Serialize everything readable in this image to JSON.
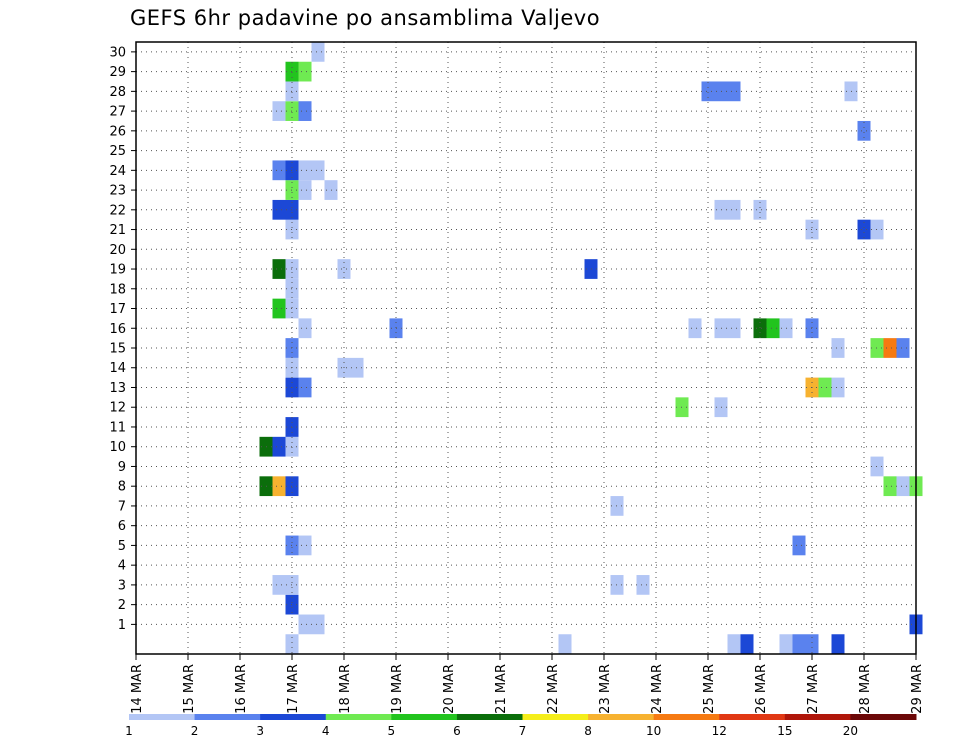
{
  "chart_data": {
    "type": "heatmap",
    "title": "GEFS 6hr padavine po ansamblima Valjevo",
    "xlabel": "",
    "ylabel": "",
    "x_ticks": [
      "14 MAR",
      "15 MAR",
      "16 MAR",
      "17 MAR",
      "18 MAR",
      "19 MAR",
      "20 MAR",
      "21 MAR",
      "22 MAR",
      "23 MAR",
      "24 MAR",
      "25 MAR",
      "26 MAR",
      "27 MAR",
      "28 MAR",
      "29 MAR"
    ],
    "x_range_days": [
      14,
      29
    ],
    "time_step_hours": 6,
    "members": [
      0,
      1,
      2,
      3,
      4,
      5,
      6,
      7,
      8,
      9,
      10,
      11,
      12,
      13,
      14,
      15,
      16,
      17,
      18,
      19,
      20,
      21,
      22,
      23,
      24,
      25,
      26,
      27,
      28,
      29,
      30
    ],
    "y_tick_labels": [
      "1",
      "2",
      "3",
      "4",
      "5",
      "6",
      "7",
      "8",
      "9",
      "10",
      "11",
      "12",
      "13",
      "14",
      "15",
      "16",
      "17",
      "18",
      "19",
      "20",
      "21",
      "22",
      "23",
      "24",
      "25",
      "26",
      "27",
      "28",
      "29",
      "30"
    ],
    "grid": true,
    "legend": {
      "position": "bottom",
      "thresholds": [
        "1",
        "2",
        "3",
        "4",
        "5",
        "6",
        "7",
        "8",
        "10",
        "12",
        "15",
        "20"
      ],
      "colors": [
        "#b3c6f5",
        "#5a82ee",
        "#1c48d6",
        "#6fea52",
        "#22c41e",
        "#0b6e0b",
        "#f5ee1a",
        "#f7b230",
        "#f67a12",
        "#e13814",
        "#b0160a",
        "#6c0808"
      ]
    },
    "cells": [
      {
        "time": "17 MAR 00",
        "member": 0,
        "cls": 1
      },
      {
        "time": "25 MAR 12",
        "member": 0,
        "cls": 1
      },
      {
        "time": "25 MAR 18",
        "member": 0,
        "cls": 3
      },
      {
        "time": "26 MAR 12",
        "member": 0,
        "cls": 1
      },
      {
        "time": "26 MAR 18",
        "member": 0,
        "cls": 2
      },
      {
        "time": "27 MAR 00",
        "member": 0,
        "cls": 2
      },
      {
        "time": "27 MAR 12",
        "member": 0,
        "cls": 3
      },
      {
        "time": "22 MAR 06",
        "member": 0,
        "cls": 1
      },
      {
        "time": "17 MAR 06",
        "member": 1,
        "cls": 1
      },
      {
        "time": "17 MAR 12",
        "member": 1,
        "cls": 1
      },
      {
        "time": "29 MAR 00",
        "member": 1,
        "cls": 3
      },
      {
        "time": "17 MAR 00",
        "member": 2,
        "cls": 3
      },
      {
        "time": "16 MAR 18",
        "member": 3,
        "cls": 1
      },
      {
        "time": "17 MAR 00",
        "member": 3,
        "cls": 1
      },
      {
        "time": "23 MAR 06",
        "member": 3,
        "cls": 1
      },
      {
        "time": "23 MAR 18",
        "member": 3,
        "cls": 1
      },
      {
        "time": "17 MAR 00",
        "member": 5,
        "cls": 2
      },
      {
        "time": "17 MAR 06",
        "member": 5,
        "cls": 1
      },
      {
        "time": "26 MAR 18",
        "member": 5,
        "cls": 2
      },
      {
        "time": "23 MAR 06",
        "member": 7,
        "cls": 1
      },
      {
        "time": "16 MAR 12",
        "member": 8,
        "cls": 6
      },
      {
        "time": "16 MAR 18",
        "member": 8,
        "cls": 8
      },
      {
        "time": "17 MAR 00",
        "member": 8,
        "cls": 3
      },
      {
        "time": "28 MAR 12",
        "member": 8,
        "cls": 4
      },
      {
        "time": "28 MAR 18",
        "member": 8,
        "cls": 1
      },
      {
        "time": "29 MAR 00",
        "member": 8,
        "cls": 4
      },
      {
        "time": "28 MAR 06",
        "member": 9,
        "cls": 1
      },
      {
        "time": "16 MAR 12",
        "member": 10,
        "cls": 6
      },
      {
        "time": "16 MAR 18",
        "member": 10,
        "cls": 3
      },
      {
        "time": "17 MAR 00",
        "member": 10,
        "cls": 1
      },
      {
        "time": "17 MAR 00",
        "member": 11,
        "cls": 3
      },
      {
        "time": "24 MAR 12",
        "member": 12,
        "cls": 4
      },
      {
        "time": "25 MAR 06",
        "member": 12,
        "cls": 1
      },
      {
        "time": "17 MAR 00",
        "member": 13,
        "cls": 3
      },
      {
        "time": "17 MAR 06",
        "member": 13,
        "cls": 2
      },
      {
        "time": "27 MAR 00",
        "member": 13,
        "cls": 8
      },
      {
        "time": "27 MAR 06",
        "member": 13,
        "cls": 4
      },
      {
        "time": "27 MAR 12",
        "member": 13,
        "cls": 1
      },
      {
        "time": "17 MAR 00",
        "member": 14,
        "cls": 1
      },
      {
        "time": "18 MAR 00",
        "member": 14,
        "cls": 1
      },
      {
        "time": "18 MAR 06",
        "member": 14,
        "cls": 1
      },
      {
        "time": "17 MAR 00",
        "member": 15,
        "cls": 2
      },
      {
        "time": "27 MAR 12",
        "member": 15,
        "cls": 1
      },
      {
        "time": "28 MAR 06",
        "member": 15,
        "cls": 4
      },
      {
        "time": "28 MAR 12",
        "member": 15,
        "cls": 9
      },
      {
        "time": "28 MAR 18",
        "member": 15,
        "cls": 2
      },
      {
        "time": "17 MAR 06",
        "member": 16,
        "cls": 1
      },
      {
        "time": "19 MAR 00",
        "member": 16,
        "cls": 2
      },
      {
        "time": "24 MAR 18",
        "member": 16,
        "cls": 1
      },
      {
        "time": "25 MAR 06",
        "member": 16,
        "cls": 1
      },
      {
        "time": "25 MAR 12",
        "member": 16,
        "cls": 1
      },
      {
        "time": "26 MAR 00",
        "member": 16,
        "cls": 6
      },
      {
        "time": "26 MAR 06",
        "member": 16,
        "cls": 5
      },
      {
        "time": "26 MAR 12",
        "member": 16,
        "cls": 1
      },
      {
        "time": "27 MAR 00",
        "member": 16,
        "cls": 2
      },
      {
        "time": "16 MAR 18",
        "member": 17,
        "cls": 5
      },
      {
        "time": "17 MAR 00",
        "member": 17,
        "cls": 1
      },
      {
        "time": "17 MAR 00",
        "member": 18,
        "cls": 1
      },
      {
        "time": "16 MAR 18",
        "member": 19,
        "cls": 6
      },
      {
        "time": "17 MAR 00",
        "member": 19,
        "cls": 1
      },
      {
        "time": "18 MAR 00",
        "member": 19,
        "cls": 1
      },
      {
        "time": "22 MAR 18",
        "member": 19,
        "cls": 3
      },
      {
        "time": "17 MAR 00",
        "member": 21,
        "cls": 1
      },
      {
        "time": "27 MAR 00",
        "member": 21,
        "cls": 1
      },
      {
        "time": "28 MAR 00",
        "member": 21,
        "cls": 3
      },
      {
        "time": "28 MAR 06",
        "member": 21,
        "cls": 1
      },
      {
        "time": "16 MAR 18",
        "member": 22,
        "cls": 3
      },
      {
        "time": "17 MAR 00",
        "member": 22,
        "cls": 3
      },
      {
        "time": "25 MAR 06",
        "member": 22,
        "cls": 1
      },
      {
        "time": "25 MAR 12",
        "member": 22,
        "cls": 1
      },
      {
        "time": "26 MAR 00",
        "member": 22,
        "cls": 1
      },
      {
        "time": "17 MAR 00",
        "member": 23,
        "cls": 4
      },
      {
        "time": "17 MAR 06",
        "member": 23,
        "cls": 1
      },
      {
        "time": "17 MAR 18",
        "member": 23,
        "cls": 1
      },
      {
        "time": "16 MAR 18",
        "member": 24,
        "cls": 2
      },
      {
        "time": "17 MAR 00",
        "member": 24,
        "cls": 3
      },
      {
        "time": "17 MAR 06",
        "member": 24,
        "cls": 1
      },
      {
        "time": "17 MAR 12",
        "member": 24,
        "cls": 1
      },
      {
        "time": "28 MAR 00",
        "member": 26,
        "cls": 2
      },
      {
        "time": "16 MAR 18",
        "member": 27,
        "cls": 1
      },
      {
        "time": "17 MAR 00",
        "member": 27,
        "cls": 4
      },
      {
        "time": "17 MAR 06",
        "member": 27,
        "cls": 2
      },
      {
        "time": "17 MAR 00",
        "member": 28,
        "cls": 1
      },
      {
        "time": "25 MAR 00",
        "member": 28,
        "cls": 2
      },
      {
        "time": "25 MAR 06",
        "member": 28,
        "cls": 2
      },
      {
        "time": "25 MAR 12",
        "member": 28,
        "cls": 2
      },
      {
        "time": "27 MAR 18",
        "member": 28,
        "cls": 1
      },
      {
        "time": "17 MAR 00",
        "member": 29,
        "cls": 5
      },
      {
        "time": "17 MAR 06",
        "member": 29,
        "cls": 4
      },
      {
        "time": "17 MAR 12",
        "member": 30,
        "cls": 1
      }
    ]
  }
}
